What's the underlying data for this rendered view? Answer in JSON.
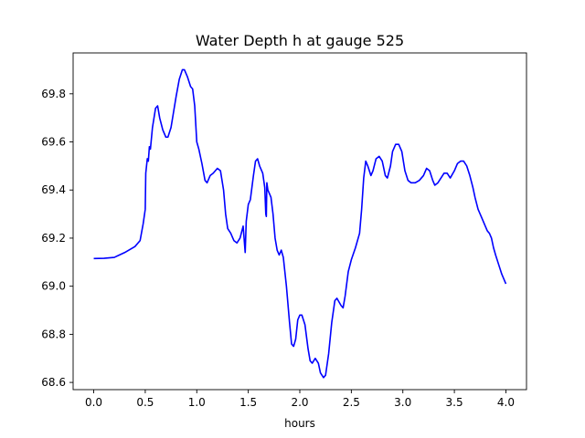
{
  "chart_data": {
    "type": "line",
    "title": "Water Depth h at gauge 525",
    "xlabel": "hours",
    "ylabel": "",
    "xlim": [
      -0.2,
      4.2
    ],
    "ylim": [
      68.57,
      69.97
    ],
    "grid": false,
    "x_ticks": [
      0.0,
      0.5,
      1.0,
      1.5,
      2.0,
      2.5,
      3.0,
      3.5,
      4.0
    ],
    "x_tick_labels": [
      "0.0",
      "0.5",
      "1.0",
      "1.5",
      "2.0",
      "2.5",
      "3.0",
      "3.5",
      "4.0"
    ],
    "y_ticks": [
      68.6,
      68.8,
      69.0,
      69.2,
      69.4,
      69.6,
      69.8
    ],
    "y_tick_labels": [
      "68.6",
      "68.8",
      "69.0",
      "69.2",
      "69.4",
      "69.6",
      "69.8"
    ],
    "series": [
      {
        "color": "#0000ff",
        "points": [
          [
            0.0,
            69.115
          ],
          [
            0.1,
            69.116
          ],
          [
            0.2,
            69.12
          ],
          [
            0.3,
            69.14
          ],
          [
            0.4,
            69.165
          ],
          [
            0.45,
            69.19
          ],
          [
            0.48,
            69.26
          ],
          [
            0.5,
            69.32
          ],
          [
            0.505,
            69.47
          ],
          [
            0.52,
            69.53
          ],
          [
            0.53,
            69.52
          ],
          [
            0.54,
            69.58
          ],
          [
            0.55,
            69.57
          ],
          [
            0.57,
            69.66
          ],
          [
            0.6,
            69.74
          ],
          [
            0.62,
            69.75
          ],
          [
            0.64,
            69.7
          ],
          [
            0.67,
            69.65
          ],
          [
            0.7,
            69.62
          ],
          [
            0.72,
            69.62
          ],
          [
            0.75,
            69.66
          ],
          [
            0.8,
            69.79
          ],
          [
            0.83,
            69.86
          ],
          [
            0.86,
            69.9
          ],
          [
            0.88,
            69.9
          ],
          [
            0.91,
            69.87
          ],
          [
            0.94,
            69.83
          ],
          [
            0.96,
            69.82
          ],
          [
            0.98,
            69.75
          ],
          [
            1.0,
            69.6
          ],
          [
            1.02,
            69.57
          ],
          [
            1.05,
            69.51
          ],
          [
            1.08,
            69.44
          ],
          [
            1.1,
            69.43
          ],
          [
            1.13,
            69.46
          ],
          [
            1.16,
            69.47
          ],
          [
            1.2,
            69.49
          ],
          [
            1.23,
            69.48
          ],
          [
            1.26,
            69.4
          ],
          [
            1.28,
            69.3
          ],
          [
            1.3,
            69.24
          ],
          [
            1.33,
            69.22
          ],
          [
            1.36,
            69.19
          ],
          [
            1.39,
            69.18
          ],
          [
            1.42,
            69.2
          ],
          [
            1.45,
            69.25
          ],
          [
            1.47,
            69.14
          ],
          [
            1.48,
            69.27
          ],
          [
            1.5,
            69.34
          ],
          [
            1.52,
            69.36
          ],
          [
            1.55,
            69.46
          ],
          [
            1.57,
            69.52
          ],
          [
            1.59,
            69.53
          ],
          [
            1.61,
            69.5
          ],
          [
            1.64,
            69.47
          ],
          [
            1.66,
            69.41
          ],
          [
            1.67,
            69.3
          ],
          [
            1.675,
            69.29
          ],
          [
            1.68,
            69.43
          ],
          [
            1.69,
            69.4
          ],
          [
            1.72,
            69.37
          ],
          [
            1.74,
            69.3
          ],
          [
            1.76,
            69.2
          ],
          [
            1.78,
            69.15
          ],
          [
            1.8,
            69.13
          ],
          [
            1.82,
            69.15
          ],
          [
            1.84,
            69.12
          ],
          [
            1.87,
            69.0
          ],
          [
            1.9,
            68.85
          ],
          [
            1.92,
            68.76
          ],
          [
            1.94,
            68.75
          ],
          [
            1.96,
            68.78
          ],
          [
            1.98,
            68.86
          ],
          [
            2.0,
            68.88
          ],
          [
            2.02,
            68.88
          ],
          [
            2.05,
            68.84
          ],
          [
            2.08,
            68.74
          ],
          [
            2.1,
            68.69
          ],
          [
            2.12,
            68.68
          ],
          [
            2.15,
            68.7
          ],
          [
            2.18,
            68.68
          ],
          [
            2.2,
            68.64
          ],
          [
            2.23,
            68.62
          ],
          [
            2.25,
            68.63
          ],
          [
            2.28,
            68.72
          ],
          [
            2.31,
            68.85
          ],
          [
            2.34,
            68.94
          ],
          [
            2.36,
            68.95
          ],
          [
            2.4,
            68.92
          ],
          [
            2.42,
            68.91
          ],
          [
            2.44,
            68.96
          ],
          [
            2.47,
            69.06
          ],
          [
            2.5,
            69.11
          ],
          [
            2.54,
            69.16
          ],
          [
            2.58,
            69.22
          ],
          [
            2.6,
            69.32
          ],
          [
            2.62,
            69.45
          ],
          [
            2.64,
            69.52
          ],
          [
            2.66,
            69.5
          ],
          [
            2.69,
            69.46
          ],
          [
            2.71,
            69.48
          ],
          [
            2.74,
            69.53
          ],
          [
            2.77,
            69.54
          ],
          [
            2.8,
            69.52
          ],
          [
            2.83,
            69.46
          ],
          [
            2.85,
            69.45
          ],
          [
            2.88,
            69.5
          ],
          [
            2.9,
            69.56
          ],
          [
            2.93,
            69.59
          ],
          [
            2.96,
            69.59
          ],
          [
            2.99,
            69.56
          ],
          [
            3.02,
            69.48
          ],
          [
            3.05,
            69.44
          ],
          [
            3.08,
            69.43
          ],
          [
            3.12,
            69.43
          ],
          [
            3.16,
            69.44
          ],
          [
            3.2,
            69.46
          ],
          [
            3.23,
            69.49
          ],
          [
            3.26,
            69.48
          ],
          [
            3.29,
            69.44
          ],
          [
            3.31,
            69.42
          ],
          [
            3.34,
            69.43
          ],
          [
            3.37,
            69.45
          ],
          [
            3.4,
            69.47
          ],
          [
            3.43,
            69.47
          ],
          [
            3.46,
            69.45
          ],
          [
            3.5,
            69.48
          ],
          [
            3.53,
            69.51
          ],
          [
            3.56,
            69.52
          ],
          [
            3.59,
            69.52
          ],
          [
            3.62,
            69.5
          ],
          [
            3.65,
            69.46
          ],
          [
            3.68,
            69.41
          ],
          [
            3.7,
            69.37
          ],
          [
            3.73,
            69.32
          ],
          [
            3.77,
            69.28
          ],
          [
            3.8,
            69.25
          ],
          [
            3.82,
            69.23
          ],
          [
            3.84,
            69.22
          ],
          [
            3.86,
            69.2
          ],
          [
            3.88,
            69.16
          ],
          [
            3.9,
            69.13
          ],
          [
            3.93,
            69.09
          ],
          [
            3.96,
            69.05
          ],
          [
            4.0,
            69.01
          ]
        ]
      }
    ]
  }
}
